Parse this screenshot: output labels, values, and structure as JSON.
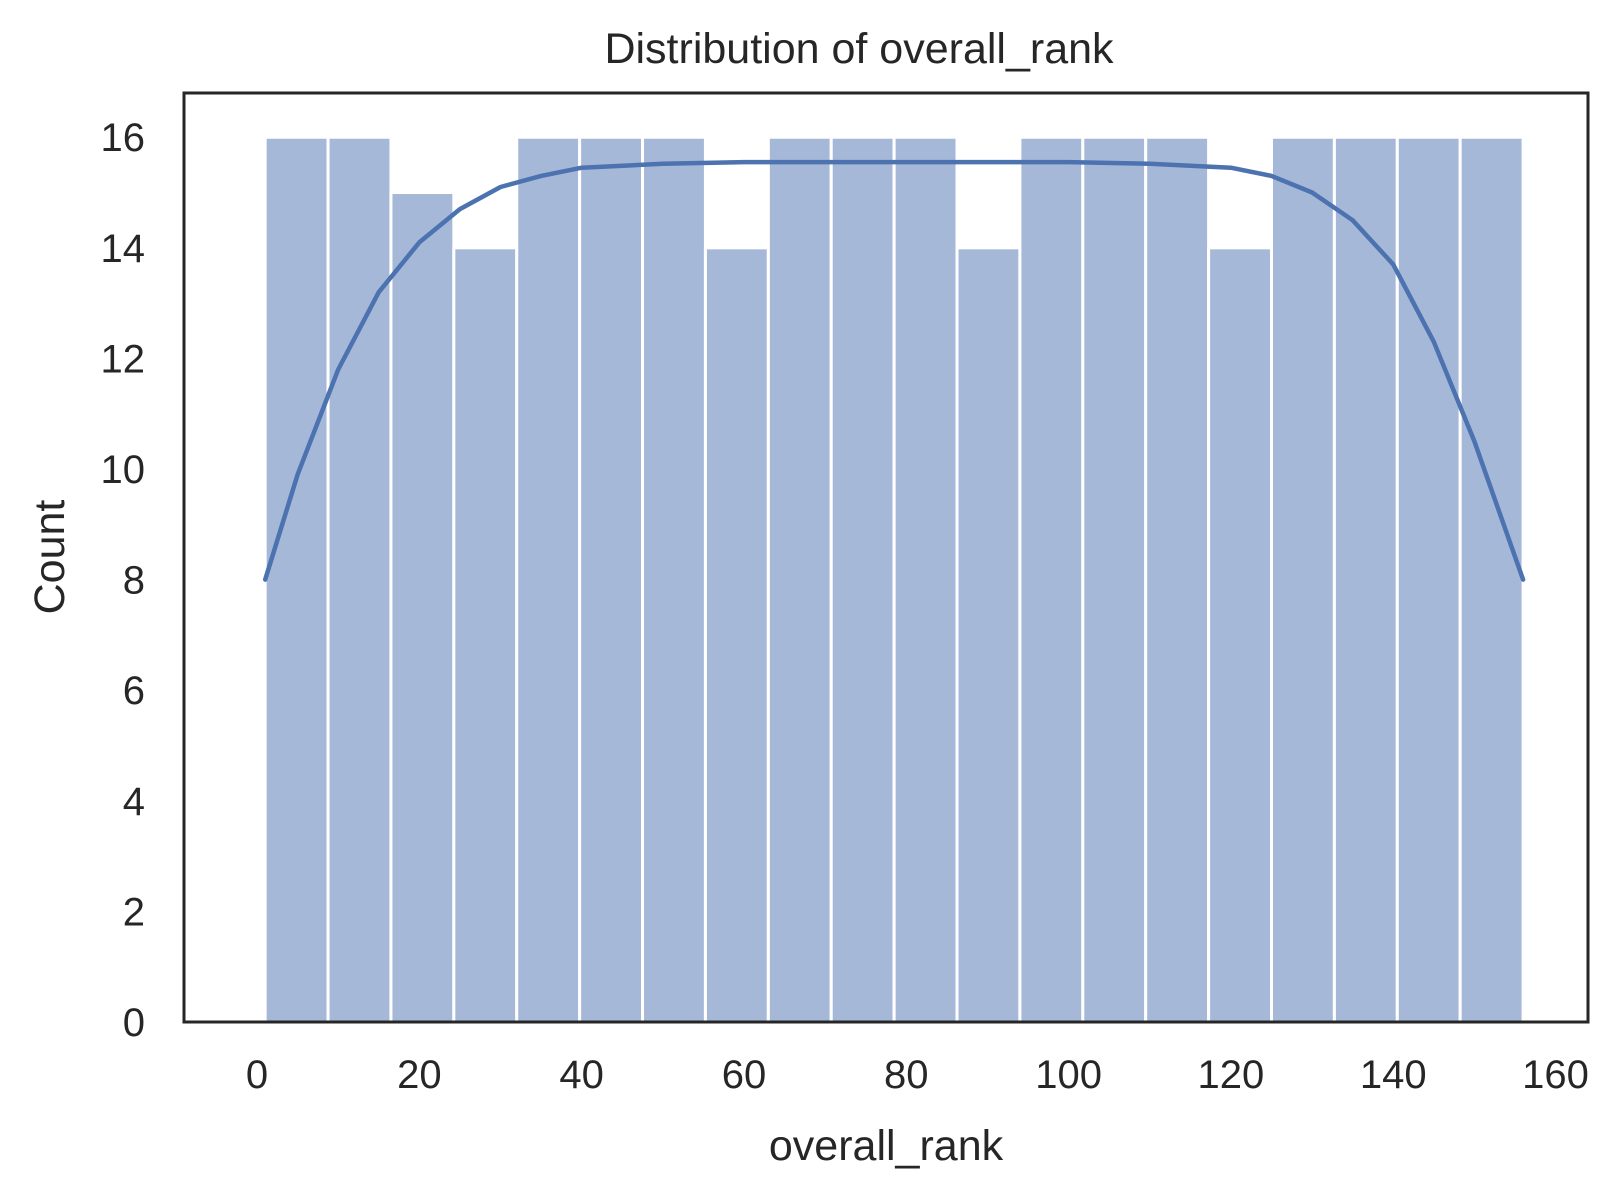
{
  "chart_data": {
    "type": "bar",
    "title": "Distribution of overall_rank",
    "xlabel": "overall_rank",
    "ylabel": "Count",
    "xlim": [
      -9,
      164
    ],
    "ylim": [
      0,
      16.8
    ],
    "xticks": [
      0,
      20,
      40,
      60,
      80,
      100,
      120,
      140,
      160
    ],
    "yticks": [
      0,
      2,
      4,
      6,
      8,
      10,
      12,
      14,
      16
    ],
    "bin_edges": [
      1,
      8.75,
      16.5,
      24.25,
      32,
      39.75,
      47.5,
      55.25,
      63,
      70.75,
      78.5,
      86.25,
      94,
      101.75,
      109.5,
      117.25,
      125,
      132.75,
      140.5,
      148.25,
      156
    ],
    "values": [
      16,
      16,
      15,
      14,
      16,
      16,
      16,
      14,
      16,
      16,
      16,
      14,
      16,
      16,
      16,
      14,
      16,
      16,
      16,
      16
    ],
    "kde": {
      "x": [
        1,
        5,
        10,
        15,
        20,
        25,
        30,
        35,
        40,
        50,
        60,
        70,
        80,
        90,
        100,
        110,
        120,
        125,
        130,
        135,
        140,
        145,
        150,
        156
      ],
      "y": [
        8.0,
        9.9,
        11.8,
        13.2,
        14.1,
        14.7,
        15.1,
        15.3,
        15.45,
        15.52,
        15.55,
        15.55,
        15.55,
        15.55,
        15.55,
        15.52,
        15.45,
        15.3,
        15.0,
        14.5,
        13.7,
        12.3,
        10.5,
        8.0
      ]
    },
    "bar_color": "#a6b8d8",
    "line_color": "#4c72b0",
    "grid": false,
    "legend": false
  }
}
